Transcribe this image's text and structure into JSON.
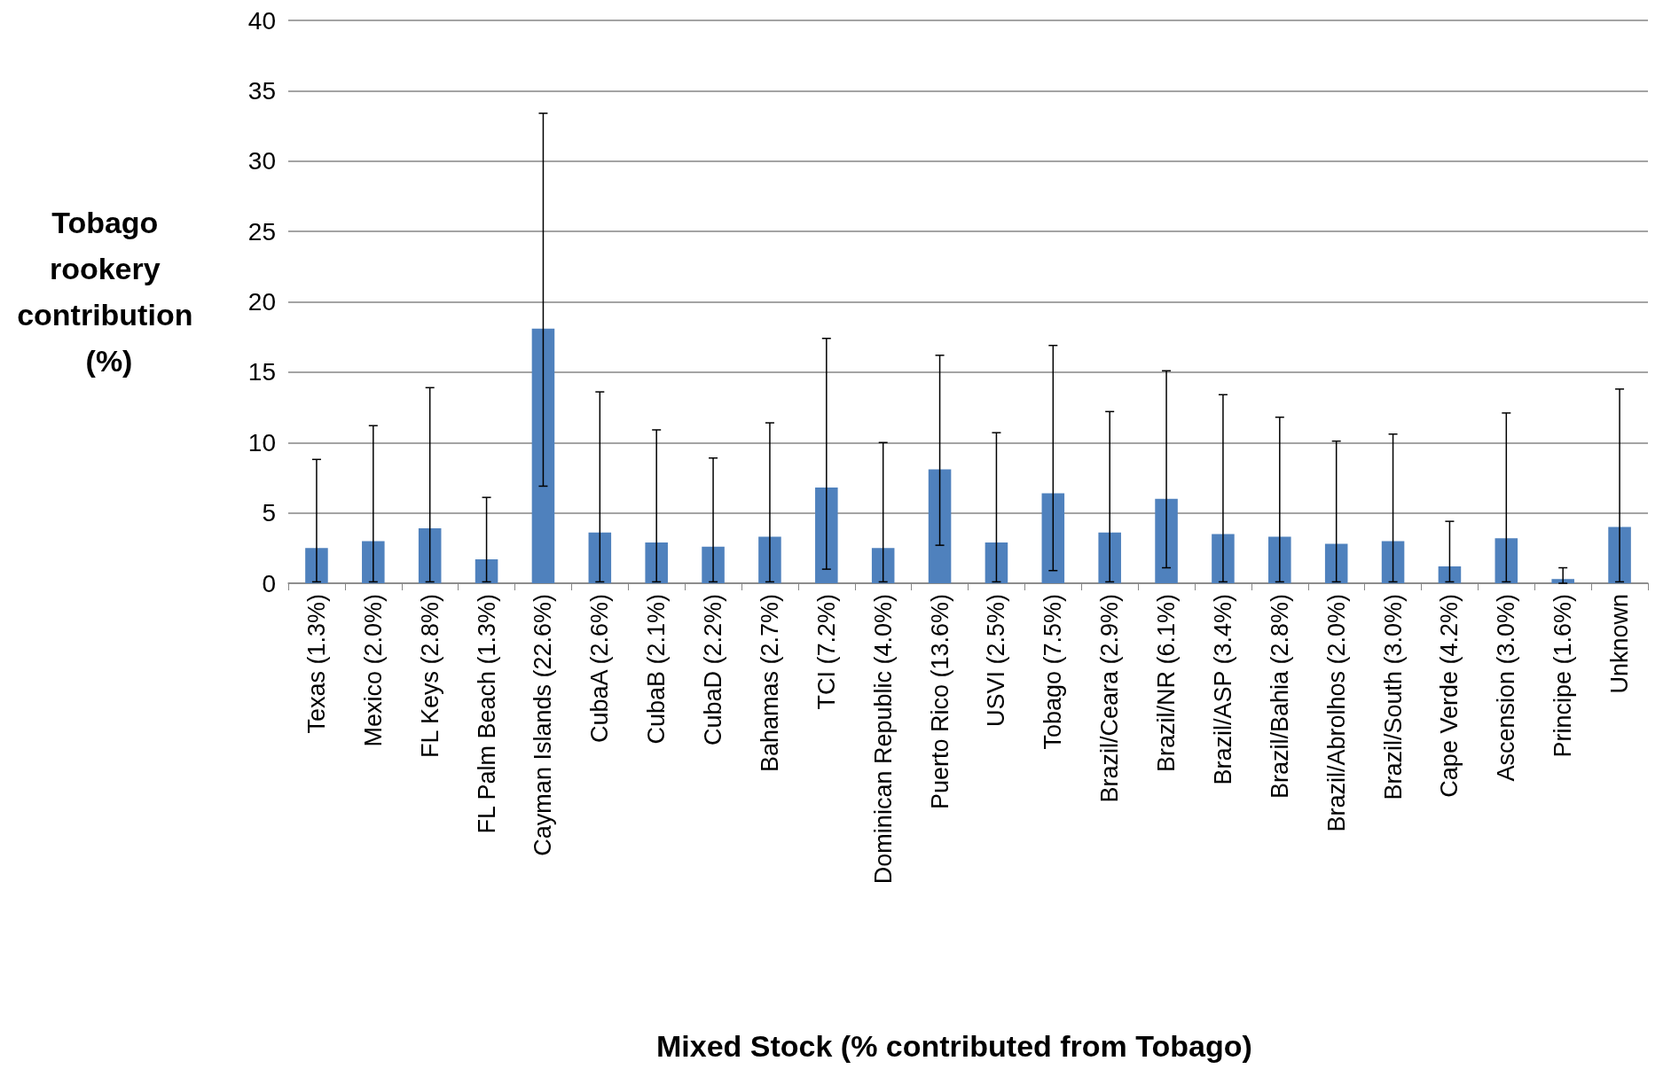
{
  "chart_data": {
    "type": "bar",
    "ylabel": "Tobago rookery contribution (%)",
    "xlabel": "Mixed Stock (% contributed from Tobago)",
    "categories": [
      "Texas (1.3%)",
      "Mexico (2.0%)",
      "FL Keys (2.8%)",
      "FL Palm Beach (1.3%)",
      "Cayman Islands (22.6%)",
      "CubaA (2.6%)",
      "CubaB (2.1%)",
      "CubaD (2.2%)",
      "Bahamas (2.7%)",
      "TCI (7.2%)",
      "Dominican Republic (4.0%)",
      "Puerto Rico (13.6%)",
      "USVI (2.5%)",
      "Tobago (7.5%)",
      "Brazil/Ceara (2.9%)",
      "Brazil/NR (6.1%)",
      "Brazil/ASP (3.4%)",
      "Brazil/Bahia (2.8%)",
      "Brazil/Abrolhos (2.0%)",
      "Brazil/South (3.0%)",
      "Cape Verde (4.2%)",
      "Ascension (3.0%)",
      "Principe (1.6%)",
      "Unknown"
    ],
    "values": [
      2.5,
      3.0,
      3.9,
      1.7,
      18.1,
      3.6,
      2.9,
      2.6,
      3.3,
      6.8,
      2.5,
      8.1,
      2.9,
      6.4,
      3.6,
      6.0,
      3.5,
      3.3,
      2.8,
      3.0,
      1.2,
      3.2,
      0.3,
      4.0
    ],
    "errors": [
      [
        0.1,
        8.8
      ],
      [
        0.1,
        11.2
      ],
      [
        0.1,
        13.9
      ],
      [
        0.1,
        6.1
      ],
      [
        6.9,
        33.4
      ],
      [
        0.1,
        13.6
      ],
      [
        0.1,
        10.9
      ],
      [
        0.1,
        8.9
      ],
      [
        0.1,
        11.4
      ],
      [
        1.0,
        17.4
      ],
      [
        0.1,
        10.0
      ],
      [
        2.7,
        16.2
      ],
      [
        0.1,
        10.7
      ],
      [
        0.9,
        16.9
      ],
      [
        0.1,
        12.2
      ],
      [
        1.1,
        15.1
      ],
      [
        0.1,
        13.4
      ],
      [
        0.1,
        11.8
      ],
      [
        0.1,
        10.1
      ],
      [
        0.1,
        10.6
      ],
      [
        0.1,
        4.4
      ],
      [
        0.1,
        12.1
      ],
      [
        0.0,
        1.1
      ],
      [
        0.1,
        13.8
      ]
    ],
    "color": "#4f81bd",
    "ylim": [
      0,
      40
    ],
    "yticks": [
      0,
      5,
      10,
      15,
      20,
      25,
      30,
      35,
      40
    ],
    "grid": "y"
  }
}
